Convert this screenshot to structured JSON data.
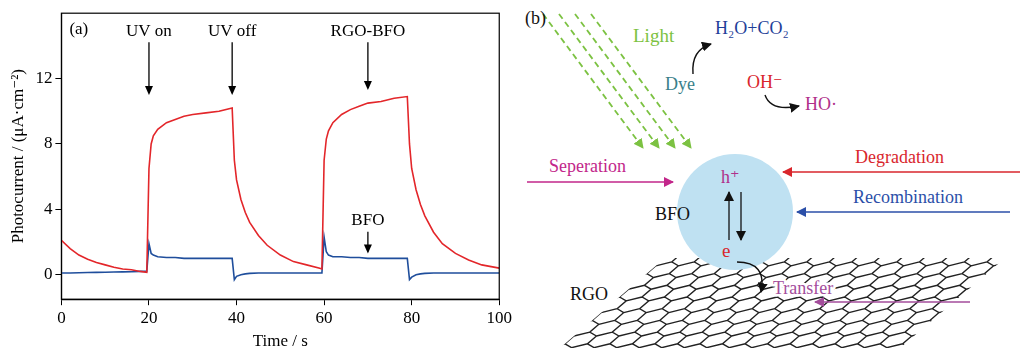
{
  "chart_data": {
    "type": "line",
    "title": "(a)",
    "x_label": "Time / s",
    "y_label": "Photocurrent / (μA·cm⁻²)",
    "xlim": [
      0,
      100
    ],
    "xticks": [
      0,
      20,
      40,
      60,
      80,
      100
    ],
    "ylim": [
      -1.5,
      16
    ],
    "yticks": [
      0,
      4,
      8,
      12
    ],
    "grid": false,
    "x": [
      0,
      2,
      4,
      6,
      8,
      10,
      12,
      14,
      16,
      18,
      19.5,
      20,
      20.5,
      21,
      22,
      24,
      26,
      28,
      30,
      33,
      36,
      39,
      39.5,
      40,
      41,
      42,
      43,
      45,
      47,
      50,
      53,
      56,
      59,
      59.5,
      60,
      60.5,
      61,
      62,
      64,
      66,
      68,
      70,
      73,
      76,
      79,
      79.5,
      80,
      81,
      82,
      83,
      85,
      87,
      90,
      93,
      96,
      100
    ],
    "series": [
      {
        "name": "RGO-BFO",
        "color": "#e3262a",
        "values": [
          2.1,
          1.6,
          1.2,
          0.95,
          0.75,
          0.6,
          0.45,
          0.35,
          0.3,
          0.2,
          0.15,
          6.5,
          8.0,
          8.5,
          8.9,
          9.3,
          9.5,
          9.7,
          9.8,
          9.9,
          10.0,
          10.2,
          7.0,
          5.8,
          4.6,
          3.8,
          3.2,
          2.4,
          1.8,
          1.2,
          0.8,
          0.6,
          0.4,
          0.35,
          7.0,
          8.3,
          8.8,
          9.3,
          9.8,
          10.1,
          10.3,
          10.5,
          10.6,
          10.8,
          10.9,
          8.0,
          6.5,
          5.2,
          4.3,
          3.6,
          2.6,
          1.9,
          1.3,
          0.9,
          0.6,
          0.4
        ]
      },
      {
        "name": "BFO",
        "color": "#1f4e9c",
        "values": [
          0.1,
          0.1,
          0.12,
          0.13,
          0.14,
          0.15,
          0.16,
          0.17,
          0.18,
          0.2,
          0.2,
          1.9,
          1.3,
          1.2,
          1.1,
          1.05,
          1.05,
          1.0,
          1.0,
          1.0,
          1.0,
          1.0,
          -0.3,
          -0.1,
          0.0,
          0.05,
          0.08,
          0.1,
          0.1,
          0.1,
          0.1,
          0.1,
          0.1,
          0.1,
          2.3,
          1.4,
          1.2,
          1.1,
          1.1,
          1.05,
          1.05,
          1.0,
          1.0,
          1.0,
          1.0,
          -0.3,
          -0.15,
          0.0,
          0.05,
          0.08,
          0.1,
          0.1,
          0.1,
          0.1,
          0.1,
          0.1
        ]
      }
    ],
    "annotations": [
      {
        "text": "UV on",
        "x": 20,
        "y": 14.9,
        "target_y": 11.0
      },
      {
        "text": "UV off",
        "x": 39,
        "y": 14.9,
        "target_y": 11.0
      },
      {
        "text": "RGO-BFO",
        "x": 70,
        "y": 14.9,
        "target_y": 11.3
      },
      {
        "text": "BFO",
        "x": 70,
        "y": 3.3,
        "target_y": 1.3
      }
    ]
  },
  "diagram": {
    "panel_label": "(b)",
    "light": "Light",
    "products": "H₂O+CO₂",
    "dye": "Dye",
    "hydroxide": "OH⁻",
    "radical": "HO·",
    "degradation": "Degradation",
    "separation": "Seperation",
    "particle": "BFO",
    "hole": "h⁺",
    "electron": "e",
    "recombination": "Recombination",
    "support": "RGO",
    "transfer": "Transfer"
  }
}
